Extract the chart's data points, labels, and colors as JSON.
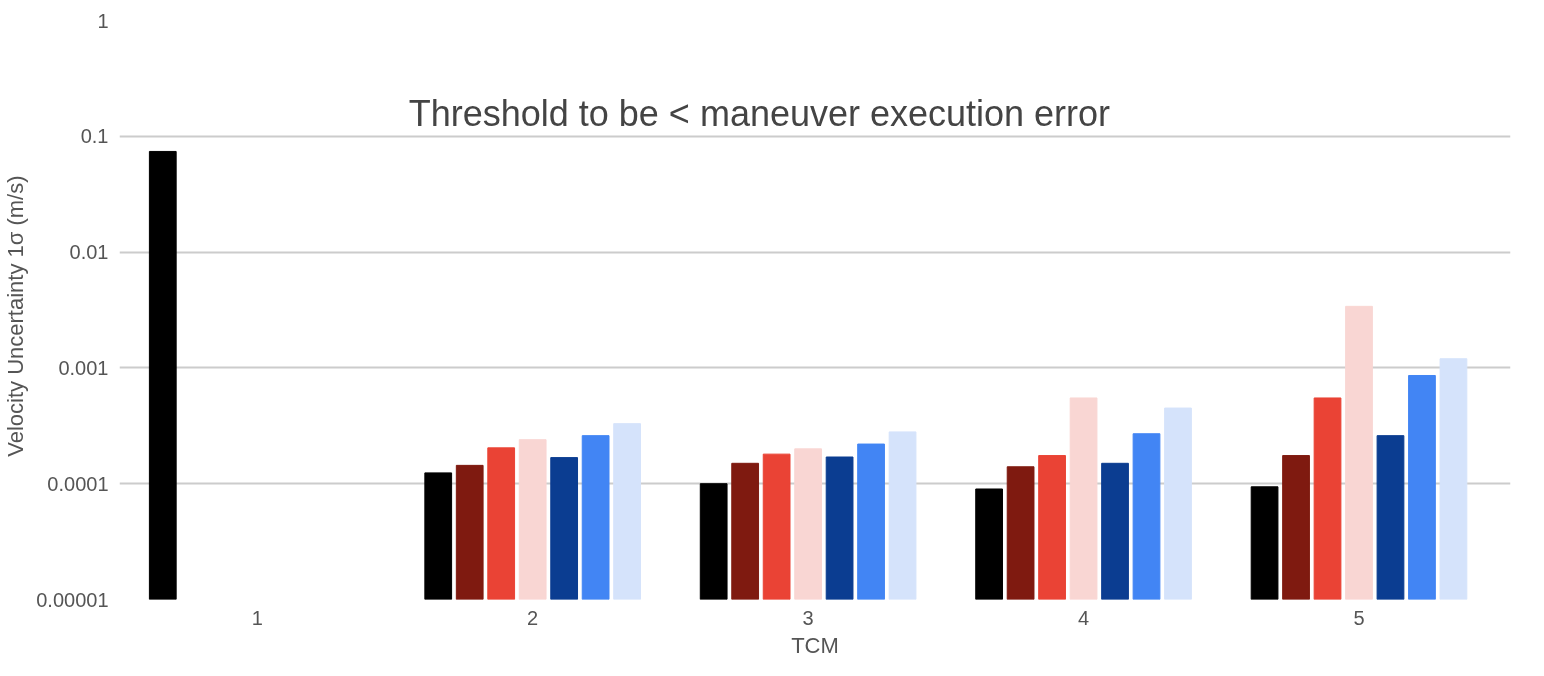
{
  "chart_data": {
    "type": "bar",
    "xlabel": "TCM",
    "ylabel": "Velocity Uncertainty 1σ   (m/s)",
    "annotations": [
      "Threshold to be < maneuver execution error"
    ],
    "categories": [
      "1",
      "2",
      "3",
      "4",
      "5"
    ],
    "series": [
      {
        "color": "#000000",
        "values": [
          0.074,
          0.000124,
          0.0001,
          9e-05,
          9.4e-05
        ]
      },
      {
        "color": "#7f1a10",
        "values": [
          null,
          0.000144,
          0.00015,
          0.00014,
          0.000175
        ]
      },
      {
        "color": "#ea4335",
        "values": [
          null,
          0.000204,
          0.00018,
          0.000175,
          0.00055
        ]
      },
      {
        "color": "#f9d6d3",
        "values": [
          null,
          0.00024,
          0.0002,
          0.00055,
          0.0034
        ]
      },
      {
        "color": "#0b3d91",
        "values": [
          null,
          0.000168,
          0.00017,
          0.00015,
          0.00026
        ]
      },
      {
        "color": "#4285f4",
        "values": [
          null,
          0.00026,
          0.00022,
          0.00027,
          0.00086
        ]
      },
      {
        "color": "#d5e3fb",
        "values": [
          null,
          0.00033,
          0.00028,
          0.00045,
          0.0012
        ]
      }
    ],
    "log": "y",
    "ylim": [
      1e-05,
      1
    ],
    "yticks": [
      {
        "value": 1e-05,
        "label": "0.00001"
      },
      {
        "value": 0.0001,
        "label": "0.0001"
      },
      {
        "value": 0.001,
        "label": "0.001"
      },
      {
        "value": 0.01,
        "label": "0.01"
      },
      {
        "value": 0.1,
        "label": "0.1"
      },
      {
        "value": 1,
        "label": "1"
      }
    ],
    "grid": "y"
  }
}
